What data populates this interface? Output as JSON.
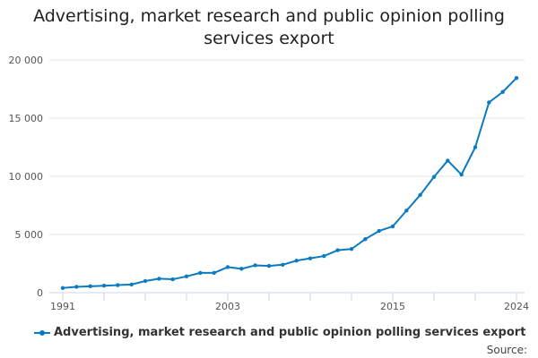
{
  "chart_data": {
    "type": "line",
    "title_line1": "Advertising, market research and public opinion polling",
    "title_line2": "services export",
    "xlabel": "",
    "ylabel": "",
    "x": [
      1991,
      1992,
      1993,
      1994,
      1995,
      1996,
      1997,
      1998,
      1999,
      2000,
      2001,
      2002,
      2003,
      2004,
      2005,
      2006,
      2007,
      2008,
      2009,
      2010,
      2011,
      2012,
      2013,
      2014,
      2015,
      2016,
      2017,
      2018,
      2019,
      2020,
      2021,
      2022,
      2023,
      2024
    ],
    "series": [
      {
        "name": "Advertising, market research and public opinion polling services export",
        "color": "#0a7bc0",
        "values": [
          400,
          500,
          550,
          600,
          650,
          700,
          1000,
          1200,
          1150,
          1400,
          1700,
          1700,
          2200,
          2050,
          2350,
          2300,
          2400,
          2750,
          2950,
          3150,
          3650,
          3750,
          4600,
          5300,
          5700,
          7050,
          8400,
          9950,
          11350,
          10150,
          12500,
          16350,
          17250,
          18450
        ]
      }
    ],
    "ylim": [
      0,
      20000
    ],
    "y_ticks": [
      0,
      5000,
      10000,
      15000,
      20000
    ],
    "y_tick_labels": [
      "0",
      "5 000",
      "10 000",
      "15 000",
      "20 000"
    ],
    "x_tick_labels": [
      "1991",
      "2003",
      "2015",
      "2024"
    ],
    "gridlines": true,
    "legend_position": "bottom-left",
    "source_label": "Source:"
  }
}
